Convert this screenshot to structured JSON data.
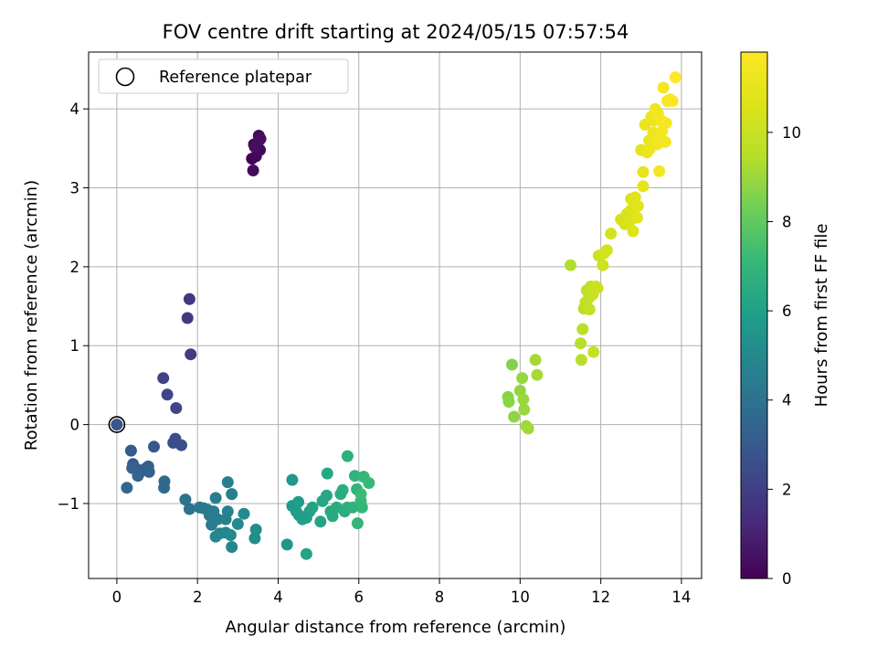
{
  "chart_data": {
    "type": "scatter",
    "title": "FOV centre drift starting at 2024/05/15 07:57:54",
    "xlabel": "Angular distance from reference (arcmin)",
    "ylabel": "Rotation from reference (arcmin)",
    "xlim": [
      -0.7,
      14.5
    ],
    "ylim": [
      -1.95,
      4.72
    ],
    "x_ticks": [
      0,
      2,
      4,
      6,
      8,
      10,
      12,
      14
    ],
    "y_ticks": [
      -1,
      0,
      1,
      2,
      3,
      4
    ],
    "x_tick_labels": [
      "0",
      "2",
      "4",
      "6",
      "8",
      "10",
      "12",
      "14"
    ],
    "y_tick_labels": [
      "−1",
      "0",
      "1",
      "2",
      "3",
      "4"
    ],
    "grid": true,
    "legend": {
      "position": "top-left",
      "entries": [
        "Reference platepar"
      ]
    },
    "colorbar": {
      "label": "Hours from first FF file",
      "colormap": "viridis",
      "range": [
        0,
        11.8
      ],
      "ticks": [
        0,
        2,
        4,
        6,
        8,
        10
      ],
      "tick_labels": [
        "0",
        "2",
        "4",
        "6",
        "8",
        "10"
      ]
    },
    "reference_point": {
      "x": 0,
      "y": 0
    },
    "series": [
      {
        "points": [
          [
            3.35,
            3.37,
            0.05
          ],
          [
            3.4,
            3.55,
            0.1
          ],
          [
            3.45,
            3.4,
            0.15
          ],
          [
            3.52,
            3.66,
            0.2
          ],
          [
            3.55,
            3.48,
            0.25
          ],
          [
            3.38,
            3.22,
            0.3
          ],
          [
            3.5,
            3.58,
            0.35
          ],
          [
            3.42,
            3.52,
            0.4
          ],
          [
            3.56,
            3.62,
            0.45
          ],
          [
            1.8,
            1.59,
            1.7
          ],
          [
            1.75,
            1.35,
            1.8
          ],
          [
            1.83,
            0.89,
            1.9
          ],
          [
            1.15,
            0.59,
            2.1
          ],
          [
            1.25,
            0.38,
            2.2
          ],
          [
            1.47,
            0.21,
            2.3
          ],
          [
            1.45,
            -0.18,
            2.45
          ],
          [
            1.4,
            -0.23,
            2.55
          ],
          [
            1.6,
            -0.26,
            2.6
          ],
          [
            0.0,
            0.0,
            2.8
          ],
          [
            0.92,
            -0.28,
            2.9
          ],
          [
            0.35,
            -0.33,
            3.0
          ],
          [
            0.4,
            -0.5,
            3.05
          ],
          [
            0.48,
            -0.56,
            3.1
          ],
          [
            0.55,
            -0.62,
            3.15
          ],
          [
            0.7,
            -0.56,
            3.2
          ],
          [
            0.78,
            -0.53,
            3.25
          ],
          [
            0.38,
            -0.55,
            3.3
          ],
          [
            0.8,
            -0.6,
            3.35
          ],
          [
            0.52,
            -0.65,
            3.4
          ],
          [
            0.25,
            -0.8,
            3.5
          ],
          [
            1.18,
            -0.72,
            3.55
          ],
          [
            1.17,
            -0.8,
            3.6
          ],
          [
            1.7,
            -0.95,
            4.0
          ],
          [
            1.8,
            -1.07,
            4.1
          ],
          [
            2.05,
            -1.05,
            4.2
          ],
          [
            2.15,
            -1.06,
            4.25
          ],
          [
            2.25,
            -1.08,
            4.3
          ],
          [
            2.3,
            -1.15,
            4.35
          ],
          [
            2.4,
            -1.1,
            4.4
          ],
          [
            2.35,
            -1.27,
            4.45
          ],
          [
            2.5,
            -1.2,
            4.5
          ],
          [
            2.45,
            -0.93,
            4.55
          ],
          [
            2.75,
            -0.73,
            4.6
          ],
          [
            2.85,
            -0.88,
            4.65
          ],
          [
            2.75,
            -1.1,
            4.7
          ],
          [
            2.7,
            -1.2,
            4.75
          ],
          [
            2.55,
            -1.38,
            4.8
          ],
          [
            2.7,
            -1.37,
            4.85
          ],
          [
            2.45,
            -1.42,
            4.9
          ],
          [
            2.85,
            -1.55,
            4.95
          ],
          [
            2.82,
            -1.4,
            5.0
          ],
          [
            3.0,
            -1.26,
            5.05
          ],
          [
            3.15,
            -1.13,
            5.1
          ],
          [
            3.45,
            -1.33,
            5.15
          ],
          [
            3.42,
            -1.44,
            5.2
          ],
          [
            4.22,
            -1.52,
            5.6
          ],
          [
            4.35,
            -0.7,
            5.7
          ],
          [
            4.35,
            -1.03,
            5.75
          ],
          [
            4.45,
            -1.1,
            5.8
          ],
          [
            4.5,
            -0.98,
            5.85
          ],
          [
            4.52,
            -1.15,
            5.9
          ],
          [
            4.6,
            -1.2,
            5.95
          ],
          [
            4.7,
            -1.18,
            6.0
          ],
          [
            4.78,
            -1.1,
            6.05
          ],
          [
            4.85,
            -1.05,
            6.1
          ],
          [
            4.7,
            -1.64,
            6.15
          ],
          [
            5.05,
            -1.23,
            6.2
          ],
          [
            5.1,
            -0.97,
            6.25
          ],
          [
            5.2,
            -0.9,
            6.3
          ],
          [
            5.22,
            -0.62,
            6.35
          ],
          [
            5.3,
            -1.1,
            6.4
          ],
          [
            5.35,
            -1.16,
            6.45
          ],
          [
            5.45,
            -1.05,
            6.5
          ],
          [
            5.55,
            -0.88,
            6.55
          ],
          [
            5.6,
            -0.83,
            6.6
          ],
          [
            5.65,
            -1.1,
            6.65
          ],
          [
            5.72,
            -1.05,
            6.7
          ],
          [
            5.72,
            -0.4,
            6.75
          ],
          [
            5.85,
            -1.05,
            6.8
          ],
          [
            5.9,
            -0.65,
            6.85
          ],
          [
            5.95,
            -0.82,
            6.9
          ],
          [
            5.97,
            -1.25,
            6.95
          ],
          [
            6.05,
            -0.97,
            7.0
          ],
          [
            6.08,
            -1.05,
            7.05
          ],
          [
            6.12,
            -0.66,
            7.1
          ],
          [
            6.25,
            -0.74,
            7.15
          ],
          [
            6.05,
            -0.88,
            7.2
          ],
          [
            9.8,
            0.76,
            8.6
          ],
          [
            9.7,
            0.35,
            8.7
          ],
          [
            9.72,
            0.29,
            8.75
          ],
          [
            9.85,
            0.1,
            8.8
          ],
          [
            10.0,
            0.43,
            8.85
          ],
          [
            10.05,
            0.59,
            8.9
          ],
          [
            10.08,
            0.32,
            8.95
          ],
          [
            10.1,
            0.19,
            9.0
          ],
          [
            10.15,
            -0.02,
            9.05
          ],
          [
            10.2,
            -0.05,
            9.1
          ],
          [
            10.38,
            0.82,
            9.15
          ],
          [
            10.42,
            0.63,
            9.2
          ],
          [
            11.25,
            2.02,
            9.4
          ],
          [
            11.5,
            1.03,
            9.5
          ],
          [
            11.52,
            0.82,
            9.55
          ],
          [
            11.55,
            1.21,
            9.6
          ],
          [
            11.58,
            1.47,
            9.65
          ],
          [
            11.62,
            1.55,
            9.7
          ],
          [
            11.65,
            1.7,
            9.75
          ],
          [
            11.7,
            1.6,
            9.8
          ],
          [
            11.72,
            1.46,
            9.85
          ],
          [
            11.75,
            1.75,
            9.9
          ],
          [
            11.8,
            1.65,
            9.95
          ],
          [
            11.82,
            0.92,
            10.0
          ],
          [
            11.88,
            1.75,
            10.05
          ],
          [
            11.92,
            1.73,
            10.1
          ],
          [
            11.95,
            2.14,
            10.15
          ],
          [
            12.05,
            2.02,
            10.2
          ],
          [
            12.08,
            2.17,
            10.25
          ],
          [
            12.15,
            2.21,
            10.3
          ],
          [
            12.25,
            2.42,
            10.35
          ],
          [
            12.5,
            2.6,
            10.4
          ],
          [
            12.6,
            2.54,
            10.45
          ],
          [
            12.65,
            2.67,
            10.5
          ],
          [
            12.72,
            2.58,
            10.55
          ],
          [
            12.75,
            2.86,
            10.6
          ],
          [
            12.75,
            2.72,
            10.65
          ],
          [
            12.8,
            2.45,
            10.7
          ],
          [
            12.85,
            2.88,
            10.75
          ],
          [
            12.9,
            2.62,
            10.8
          ],
          [
            12.92,
            2.77,
            10.85
          ],
          [
            13.0,
            3.48,
            10.9
          ],
          [
            13.05,
            3.2,
            10.95
          ],
          [
            13.05,
            3.02,
            11.0
          ],
          [
            13.1,
            3.8,
            11.05
          ],
          [
            13.15,
            3.45,
            11.1
          ],
          [
            13.2,
            3.6,
            11.15
          ],
          [
            13.22,
            3.5,
            11.2
          ],
          [
            13.25,
            3.9,
            11.25
          ],
          [
            13.3,
            3.7,
            11.3
          ],
          [
            13.32,
            3.85,
            11.3
          ],
          [
            13.35,
            4.0,
            11.35
          ],
          [
            13.4,
            3.55,
            11.4
          ],
          [
            13.42,
            3.94,
            11.4
          ],
          [
            13.45,
            3.21,
            11.45
          ],
          [
            13.48,
            3.65,
            11.45
          ],
          [
            13.5,
            3.85,
            11.5
          ],
          [
            13.52,
            3.72,
            11.5
          ],
          [
            13.55,
            4.27,
            11.55
          ],
          [
            13.6,
            3.58,
            11.55
          ],
          [
            13.62,
            3.82,
            11.6
          ],
          [
            13.65,
            4.1,
            11.6
          ],
          [
            13.72,
            4.12,
            11.65
          ],
          [
            13.78,
            4.1,
            11.7
          ],
          [
            13.85,
            4.4,
            11.75
          ]
        ]
      }
    ]
  }
}
